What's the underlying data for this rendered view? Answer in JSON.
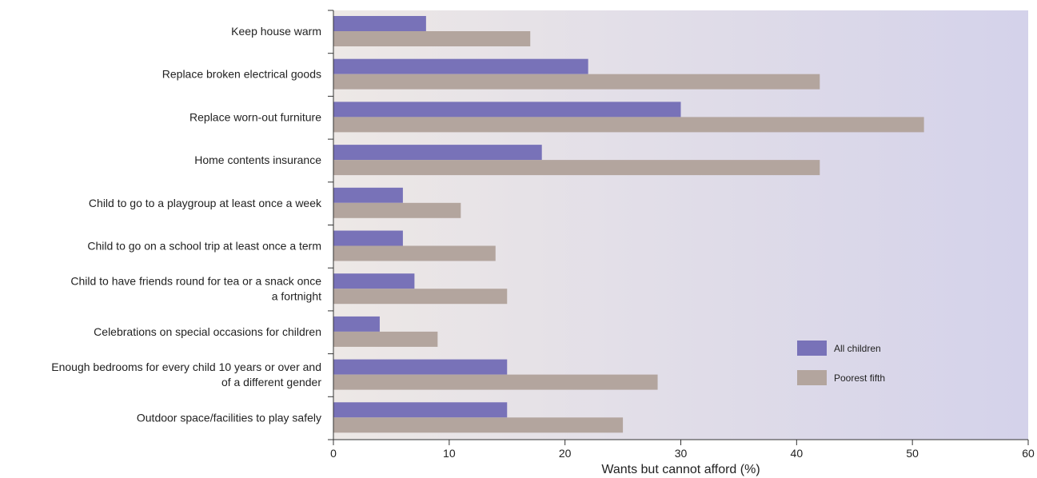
{
  "chart_data": {
    "type": "bar",
    "orientation": "horizontal",
    "categories": [
      [
        "Keep house warm"
      ],
      [
        "Replace broken electrical goods"
      ],
      [
        "Replace worn-out furniture"
      ],
      [
        "Home contents insurance"
      ],
      [
        "Child to go to a playgroup at least once a week"
      ],
      [
        "Child to go on a school trip at least once a term"
      ],
      [
        "Child to have friends round for tea or a snack once",
        "a fortnight"
      ],
      [
        "Celebrations on special occasions for children"
      ],
      [
        "Enough bedrooms for every child 10 years or over and",
        "of a different gender"
      ],
      [
        "Outdoor space/facilities to play safely"
      ]
    ],
    "series": [
      {
        "name": "All children",
        "color": "#7872b8",
        "values": [
          8,
          22,
          30,
          18,
          6,
          6,
          7,
          4,
          15,
          15
        ]
      },
      {
        "name": "Poorest fifth",
        "color": "#b3a59e",
        "values": [
          17,
          42,
          51,
          42,
          11,
          14,
          15,
          9,
          28,
          25
        ]
      }
    ],
    "xlabel": "Wants but cannot afford (%)",
    "xlim": [
      0,
      60
    ],
    "xticks": [
      0,
      10,
      20,
      30,
      40,
      50,
      60
    ],
    "grid": false,
    "legend_position": "right",
    "background_gradient": [
      "#ede8e6",
      "#d4d2ea"
    ]
  }
}
